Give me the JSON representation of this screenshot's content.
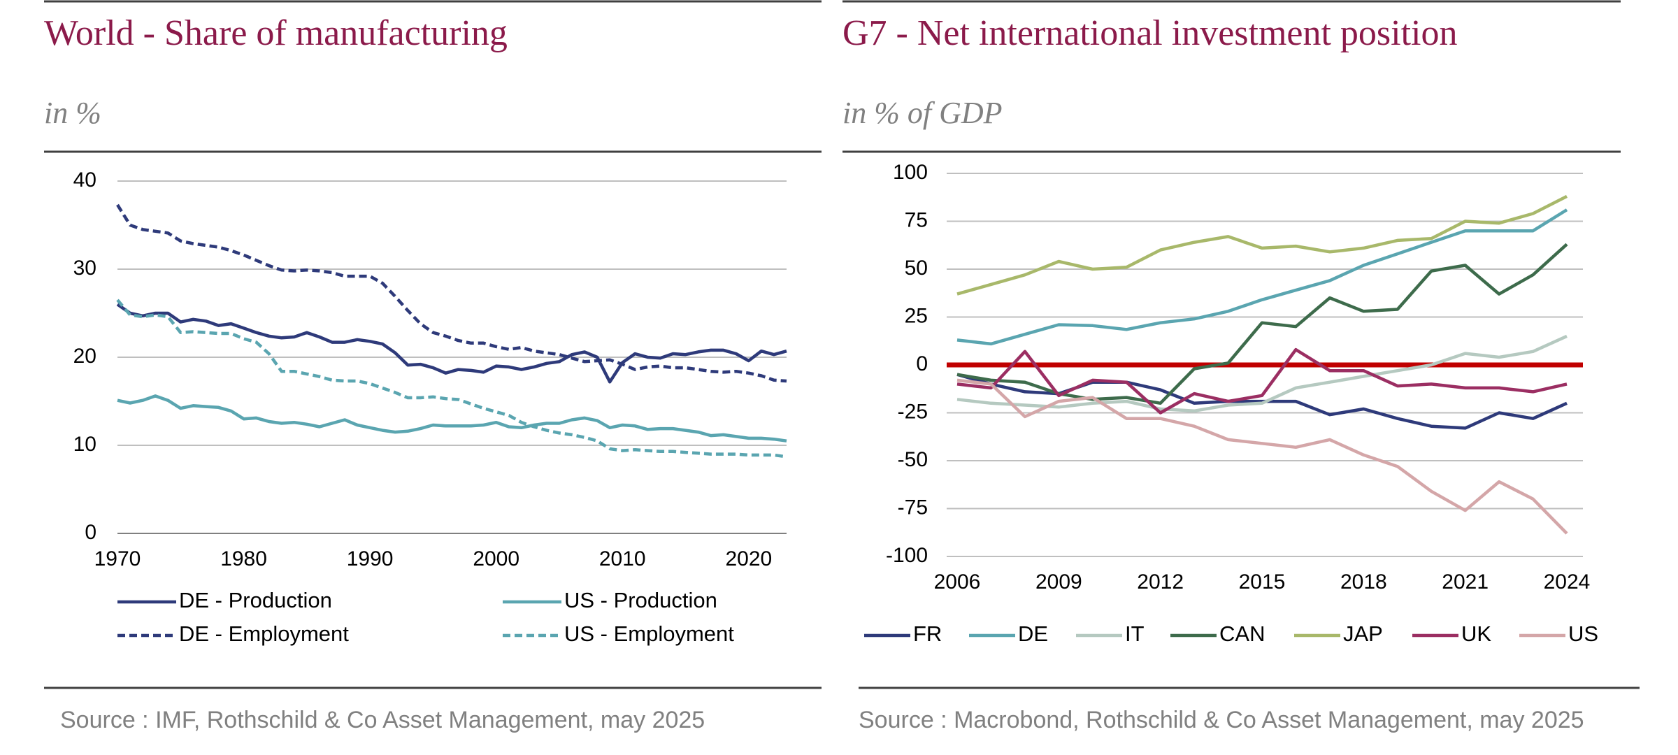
{
  "chart_data": [
    {
      "type": "line",
      "title": "World - Share of manufacturing",
      "subtitle": "in %",
      "source": "Source : IMF, Rothschild & Co Asset Management, may 2025",
      "x": [
        1970,
        1971,
        1972,
        1973,
        1974,
        1975,
        1976,
        1977,
        1978,
        1979,
        1980,
        1981,
        1982,
        1983,
        1984,
        1985,
        1986,
        1987,
        1988,
        1989,
        1990,
        1991,
        1992,
        1993,
        1994,
        1995,
        1996,
        1997,
        1998,
        1999,
        2000,
        2001,
        2002,
        2003,
        2004,
        2005,
        2006,
        2007,
        2008,
        2009,
        2010,
        2011,
        2012,
        2013,
        2014,
        2015,
        2016,
        2017,
        2018,
        2019,
        2020,
        2021,
        2022,
        2023
      ],
      "xlim": [
        1970,
        2023
      ],
      "xticks": [
        1970,
        1980,
        1990,
        2000,
        2010,
        2020
      ],
      "ylim": [
        0,
        40
      ],
      "yticks": [
        0,
        10,
        20,
        30,
        40
      ],
      "grid": true,
      "series": [
        {
          "name": "DE - Production",
          "color": "#2e3a7a",
          "dash": false,
          "values": [
            26,
            25,
            24.7,
            25,
            25,
            24,
            24.3,
            24.1,
            23.6,
            23.8,
            23.3,
            22.8,
            22.4,
            22.2,
            22.3,
            22.8,
            22.3,
            21.7,
            21.7,
            22,
            21.8,
            21.5,
            20.5,
            19.1,
            19.2,
            18.8,
            18.2,
            18.6,
            18.5,
            18.3,
            19,
            18.9,
            18.6,
            18.9,
            19.3,
            19.5,
            20.3,
            20.6,
            20,
            17.2,
            19.4,
            20.4,
            20,
            19.9,
            20.4,
            20.3,
            20.6,
            20.8,
            20.8,
            20.4,
            19.6,
            20.7,
            20.3,
            20.7
          ]
        },
        {
          "name": "US - Production",
          "color": "#5aa5b0",
          "dash": false,
          "values": [
            15.1,
            14.8,
            15.1,
            15.6,
            15.1,
            14.2,
            14.5,
            14.4,
            14.3,
            13.9,
            13,
            13.1,
            12.7,
            12.5,
            12.6,
            12.4,
            12.1,
            12.5,
            12.9,
            12.3,
            12,
            11.7,
            11.5,
            11.6,
            11.9,
            12.3,
            12.2,
            12.2,
            12.2,
            12.3,
            12.6,
            12.1,
            12,
            12.3,
            12.5,
            12.5,
            12.9,
            13.1,
            12.8,
            12,
            12.3,
            12.2,
            11.8,
            11.9,
            11.9,
            11.7,
            11.5,
            11.1,
            11.2,
            11,
            10.8,
            10.8,
            10.7,
            10.5
          ]
        },
        {
          "name": "DE - Employment",
          "color": "#2e3a7a",
          "dash": true,
          "values": [
            37.3,
            35,
            34.5,
            34.3,
            34.1,
            33.2,
            32.9,
            32.7,
            32.5,
            32.1,
            31.6,
            31,
            30.4,
            29.9,
            29.8,
            29.9,
            29.8,
            29.6,
            29.2,
            29.2,
            29.2,
            28.4,
            26.9,
            25.3,
            23.8,
            22.8,
            22.4,
            21.9,
            21.6,
            21.6,
            21.2,
            20.9,
            21.1,
            20.7,
            20.5,
            20.3,
            19.9,
            19.5,
            19.6,
            19.7,
            19.2,
            18.6,
            18.9,
            19,
            18.8,
            18.8,
            18.6,
            18.4,
            18.3,
            18.4,
            18.2,
            17.9,
            17.4,
            17.3
          ]
        },
        {
          "name": "US - Employment",
          "color": "#5aa5b0",
          "dash": true,
          "values": [
            26.5,
            24.8,
            24.6,
            24.8,
            24.6,
            22.8,
            22.9,
            22.8,
            22.7,
            22.7,
            22.1,
            21.7,
            20.4,
            18.4,
            18.4,
            18.1,
            17.8,
            17.4,
            17.3,
            17.3,
            17,
            16.5,
            16,
            15.4,
            15.4,
            15.5,
            15.3,
            15.2,
            14.7,
            14.2,
            13.8,
            13.4,
            12.6,
            12.1,
            11.7,
            11.4,
            11.2,
            10.9,
            10.5,
            9.6,
            9.4,
            9.5,
            9.4,
            9.3,
            9.3,
            9.2,
            9.1,
            9,
            9,
            9,
            8.9,
            8.9,
            8.9,
            8.7
          ]
        }
      ]
    },
    {
      "type": "line",
      "title": "G7 - Net international investment position",
      "subtitle": "in % of GDP",
      "source": "Source : Macrobond, Rothschild & Co Asset Management, may 2025",
      "x": [
        2006,
        2007,
        2008,
        2009,
        2010,
        2011,
        2012,
        2013,
        2014,
        2015,
        2016,
        2017,
        2018,
        2019,
        2020,
        2021,
        2022,
        2023,
        2024
      ],
      "xlim": [
        2006,
        2024
      ],
      "xticks": [
        2006,
        2009,
        2012,
        2015,
        2018,
        2021,
        2024
      ],
      "ylim": [
        -100,
        100
      ],
      "yticks": [
        -100,
        -75,
        -50,
        -25,
        0,
        25,
        50,
        75,
        100
      ],
      "grid": true,
      "zero_line_color": "#c00000",
      "series": [
        {
          "name": "FR",
          "color": "#2e3a7a",
          "values": [
            -5,
            -10,
            -14,
            -15,
            -9,
            -9,
            -13,
            -20,
            -19,
            -19,
            -19,
            -26,
            -23,
            -28,
            -32,
            -33,
            -25,
            -28,
            -20
          ]
        },
        {
          "name": "DE",
          "color": "#5aa5b0",
          "values": [
            13,
            11,
            16,
            21,
            20.5,
            18.5,
            22,
            24,
            28,
            34,
            39,
            44,
            52,
            58,
            64,
            70,
            70,
            70,
            81
          ]
        },
        {
          "name": "IT",
          "color": "#b5c9c0",
          "values": [
            -18,
            -20,
            -21,
            -22,
            -20,
            -19,
            -23,
            -24,
            -21,
            -20,
            -12,
            -9,
            -6,
            -3,
            0,
            6,
            4,
            7,
            15
          ]
        },
        {
          "name": "CAN",
          "color": "#3d6b4b",
          "values": [
            -5,
            -8,
            -9,
            -15,
            -18,
            -17,
            -20,
            -2,
            1,
            22,
            20,
            35,
            28,
            29,
            49,
            52,
            37,
            47,
            63
          ]
        },
        {
          "name": "JAP",
          "color": "#a8b86a",
          "values": [
            37,
            42,
            47,
            54,
            50,
            51,
            60,
            64,
            67,
            61,
            62,
            59,
            61,
            65,
            66,
            75,
            74,
            79,
            88
          ]
        },
        {
          "name": "UK",
          "color": "#9b2e62",
          "values": [
            -10,
            -12,
            7,
            -16,
            -8,
            -9,
            -25,
            -15,
            -19,
            -16,
            8,
            -3,
            -3,
            -11,
            -10,
            -12,
            -12,
            -14,
            -10
          ]
        },
        {
          "name": "US",
          "color": "#d4a6a8",
          "values": [
            -8,
            -10,
            -27,
            -19,
            -17,
            -28,
            -28,
            -32,
            -39,
            -41,
            -43,
            -39,
            -47,
            -53,
            -66,
            -76,
            -61,
            -70,
            -88
          ]
        }
      ]
    }
  ]
}
